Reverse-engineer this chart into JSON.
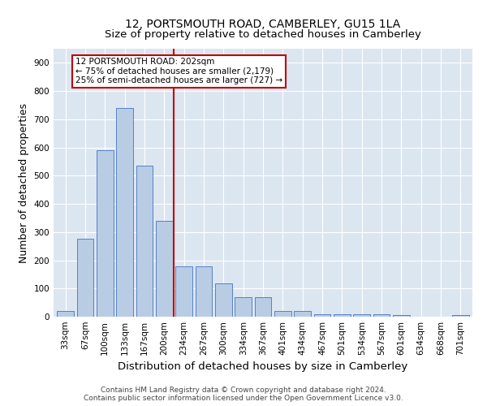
{
  "title": "12, PORTSMOUTH ROAD, CAMBERLEY, GU15 1LA",
  "subtitle": "Size of property relative to detached houses in Camberley",
  "xlabel": "Distribution of detached houses by size in Camberley",
  "ylabel": "Number of detached properties",
  "categories": [
    "33sqm",
    "67sqm",
    "100sqm",
    "133sqm",
    "167sqm",
    "200sqm",
    "234sqm",
    "267sqm",
    "300sqm",
    "334sqm",
    "367sqm",
    "401sqm",
    "434sqm",
    "467sqm",
    "501sqm",
    "534sqm",
    "567sqm",
    "601sqm",
    "634sqm",
    "668sqm",
    "701sqm"
  ],
  "bar_heights": [
    20,
    275,
    590,
    740,
    535,
    340,
    178,
    178,
    118,
    68,
    68,
    20,
    20,
    10,
    10,
    8,
    8,
    5,
    0,
    0,
    5
  ],
  "bar_color": "#b8cce4",
  "bar_edge_color": "#4472c4",
  "vline_x": 5.5,
  "vline_color": "#c00000",
  "annotation_lines": [
    "12 PORTSMOUTH ROAD: 202sqm",
    "← 75% of detached houses are smaller (2,179)",
    "25% of semi-detached houses are larger (727) →"
  ],
  "ylim": [
    0,
    950
  ],
  "yticks": [
    0,
    100,
    200,
    300,
    400,
    500,
    600,
    700,
    800,
    900
  ],
  "footer_line1": "Contains HM Land Registry data © Crown copyright and database right 2024.",
  "footer_line2": "Contains public sector information licensed under the Open Government Licence v3.0.",
  "background_color": "#ffffff",
  "plot_bg_color": "#dce6f1",
  "grid_color": "#ffffff",
  "title_fontsize": 10,
  "axis_label_fontsize": 9,
  "tick_fontsize": 7.5,
  "footer_fontsize": 6.5,
  "annotation_fontsize": 7.5
}
